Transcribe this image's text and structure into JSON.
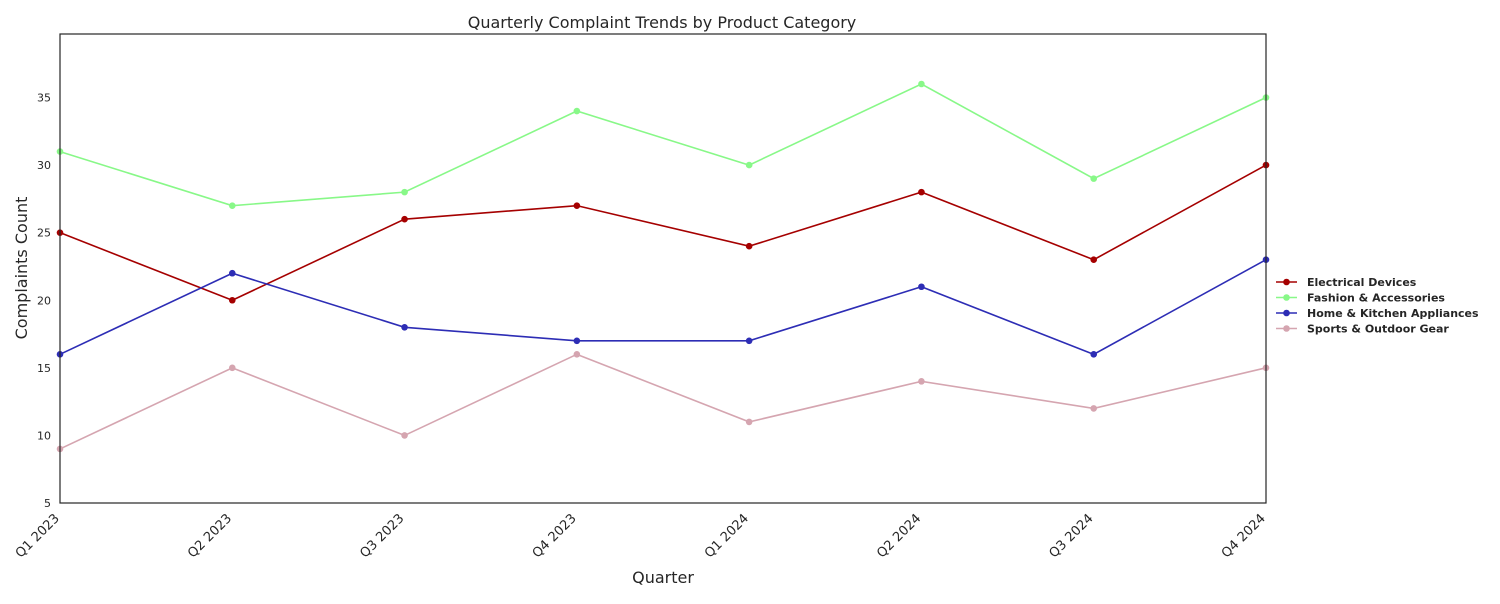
{
  "chart_data": {
    "type": "line",
    "title": "Quarterly Complaint Trends by Product Category",
    "xlabel": "Quarter",
    "ylabel": "Complaints Count",
    "categories": [
      "Q1 2023",
      "Q2 2023",
      "Q3 2023",
      "Q4 2023",
      "Q1 2024",
      "Q2 2024",
      "Q3 2024",
      "Q4 2024"
    ],
    "ylim": [
      5,
      39.7
    ],
    "yticks": [
      5,
      10,
      15,
      20,
      25,
      30,
      35
    ],
    "grid": false,
    "legend_position": "right",
    "series": [
      {
        "name": "Electrical Devices",
        "color": "#a50000",
        "values": [
          25,
          20,
          26,
          27,
          24,
          28,
          23,
          30
        ]
      },
      {
        "name": "Fashion & Accessories",
        "color": "#88f888",
        "values": [
          31,
          27,
          28,
          34,
          30,
          36,
          29,
          35
        ]
      },
      {
        "name": "Home & Kitchen Appliances",
        "color": "#2d2db5",
        "values": [
          16,
          22,
          18,
          17,
          17,
          21,
          16,
          23
        ]
      },
      {
        "name": "Sports & Outdoor Gear",
        "color": "#d5a5b0",
        "values": [
          9,
          15,
          10,
          16,
          11,
          14,
          12,
          15
        ]
      }
    ]
  }
}
